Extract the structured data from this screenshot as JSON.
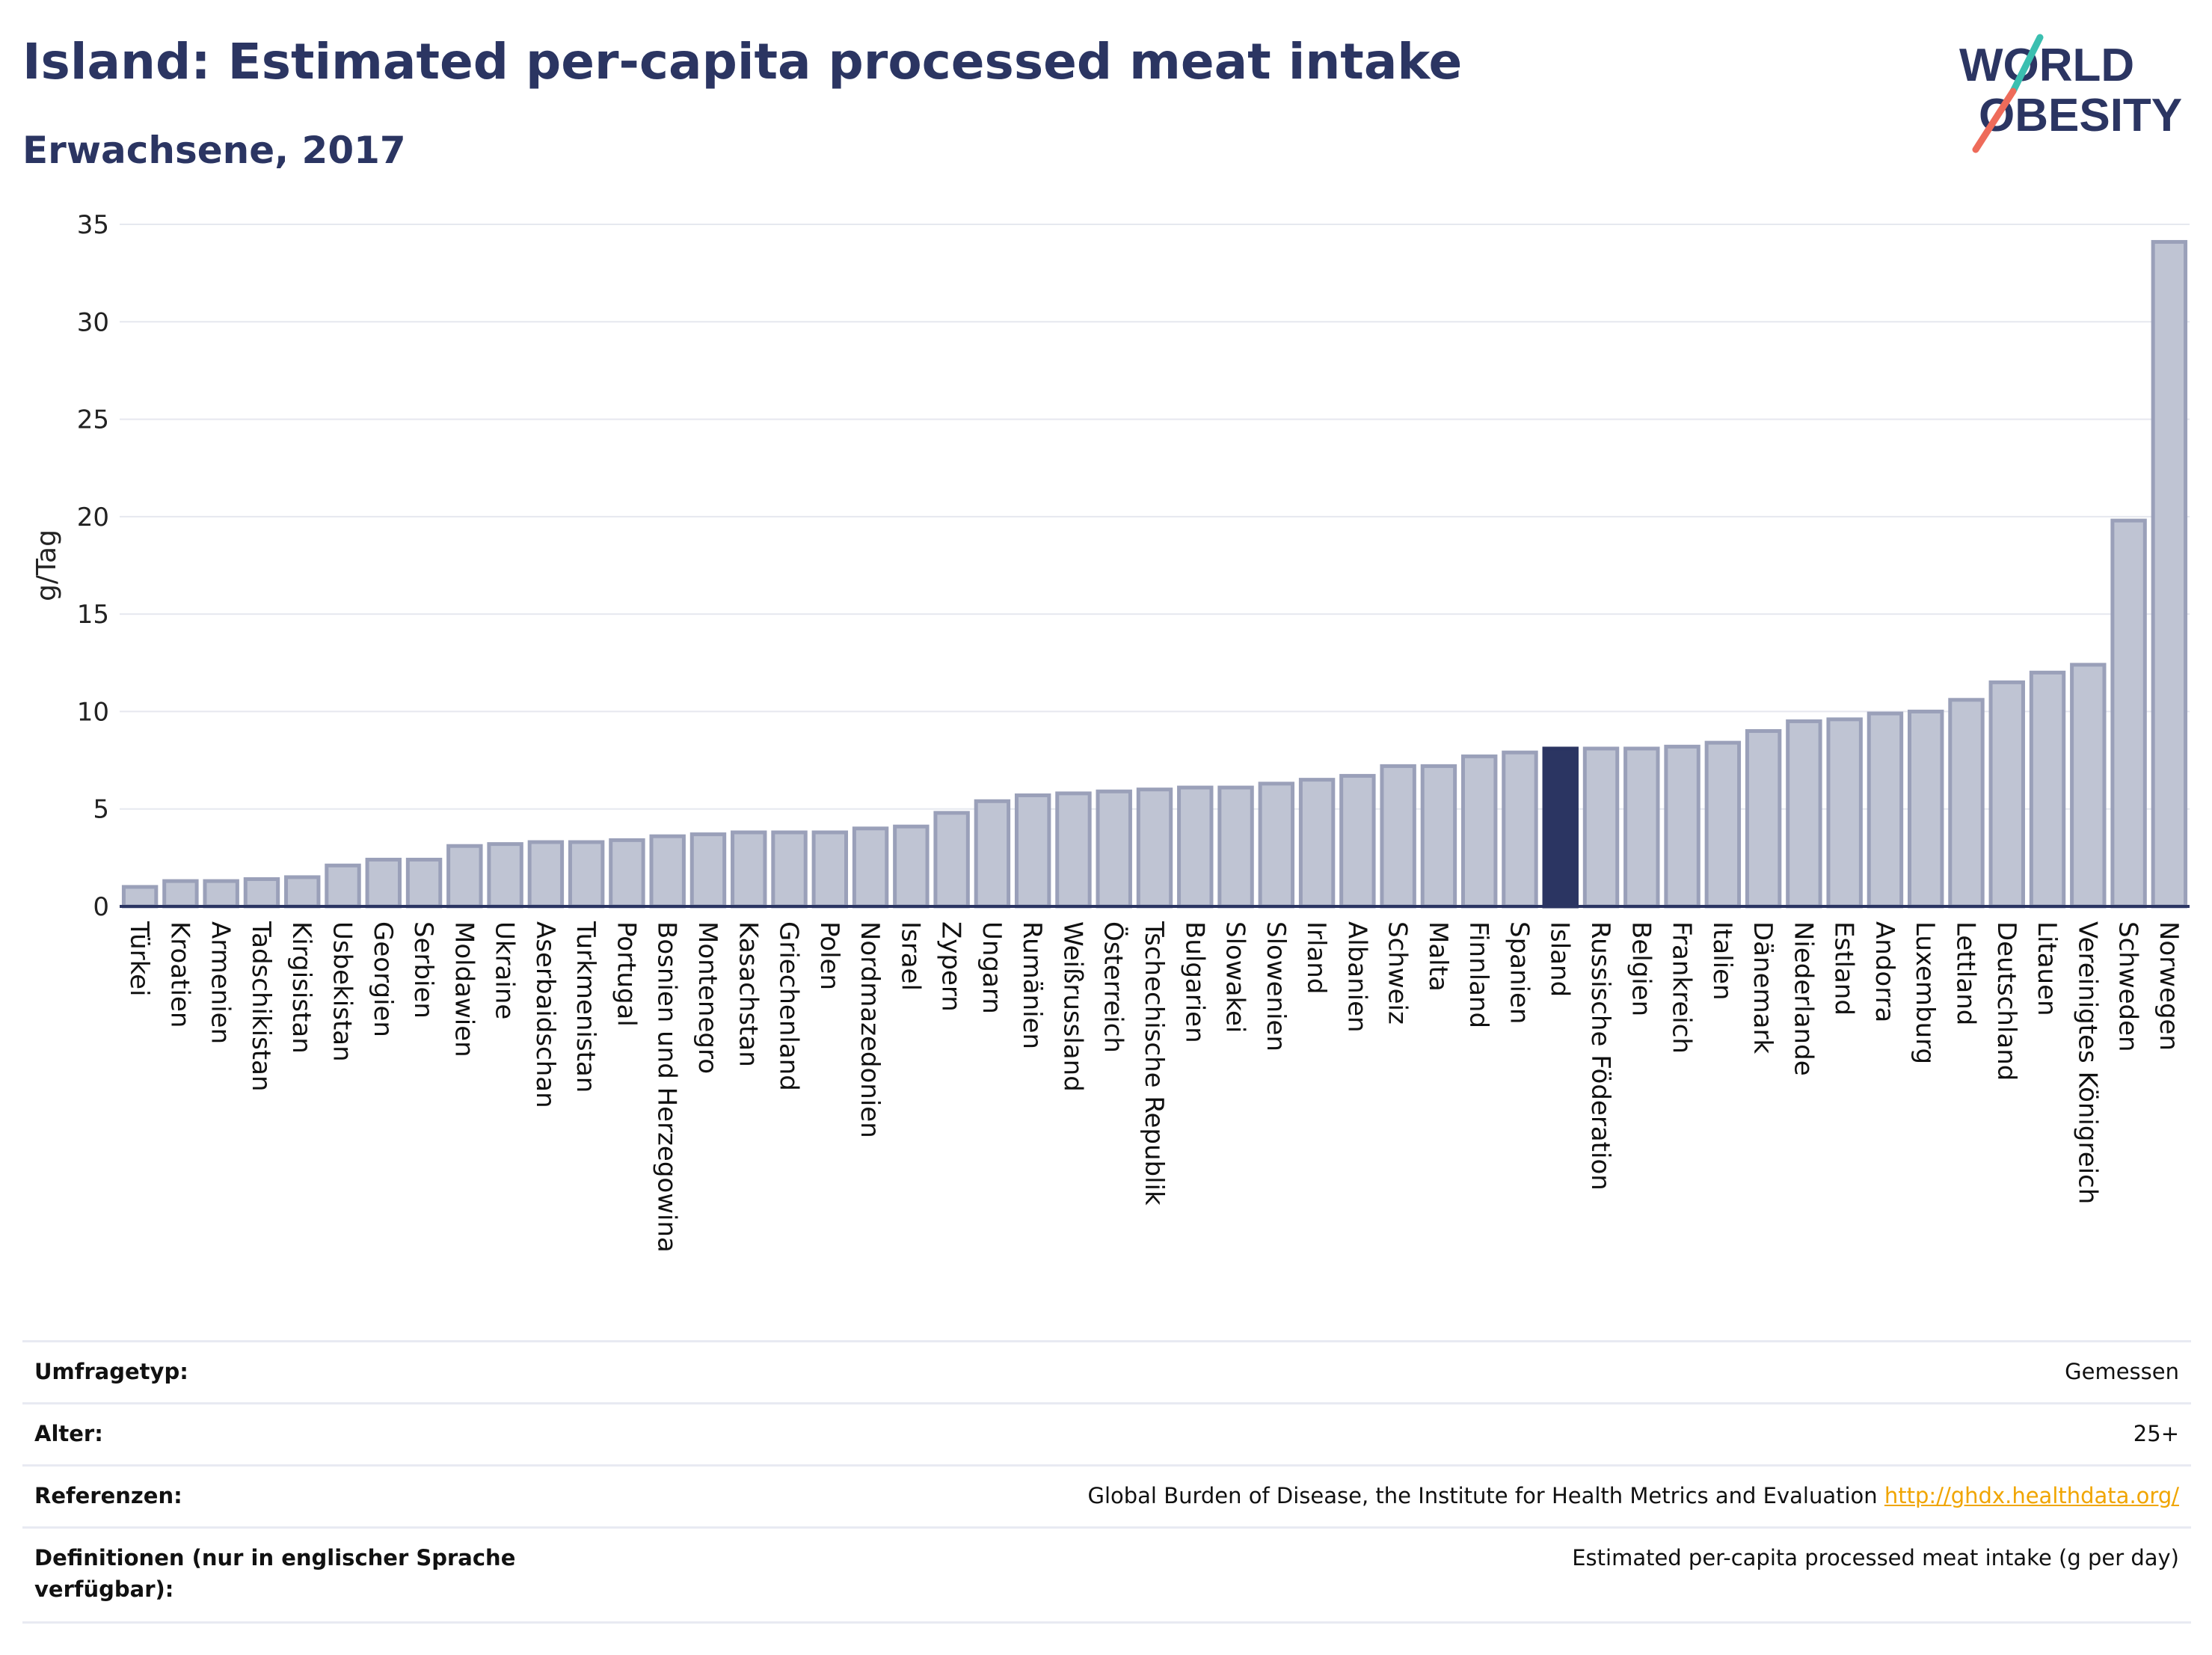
{
  "header": {
    "title": "Island: Estimated per-capita processed meat intake",
    "subtitle": "Erwachsene, 2017"
  },
  "logo": {
    "line1": "WORLD",
    "line2": "OBESITY"
  },
  "colors": {
    "bar_fill": "#bfc4d3",
    "bar_stroke": "#9aa0b9",
    "highlight": "#2b3562",
    "grid": "#e6e8ef",
    "text": "#2b3562",
    "logo_teal": "#3bbfb0",
    "logo_red": "#ee6b5a"
  },
  "chart_data": {
    "type": "bar",
    "ylabel": "g/Tag",
    "ylim": [
      0,
      35
    ],
    "yticks": [
      0,
      5,
      10,
      15,
      20,
      25,
      30,
      35
    ],
    "grid": true,
    "highlight": "Island",
    "categories": [
      "Türkei",
      "Kroatien",
      "Armenien",
      "Tadschikistan",
      "Kirgisistan",
      "Usbekistan",
      "Georgien",
      "Serbien",
      "Moldawien",
      "Ukraine",
      "Aserbaidschan",
      "Turkmenistan",
      "Portugal",
      "Bosnien und Herzegowina",
      "Montenegro",
      "Kasachstan",
      "Griechenland",
      "Polen",
      "Nordmazedonien",
      "Israel",
      "Zypern",
      "Ungarn",
      "Rumänien",
      "Weißrussland",
      "Österreich",
      "Tschechische Republik",
      "Bulgarien",
      "Slowakei",
      "Slowenien",
      "Irland",
      "Albanien",
      "Schweiz",
      "Malta",
      "Finnland",
      "Spanien",
      "Island",
      "Russische Föderation",
      "Belgien",
      "Frankreich",
      "Italien",
      "Dänemark",
      "Niederlande",
      "Estland",
      "Andorra",
      "Luxemburg",
      "Lettland",
      "Deutschland",
      "Litauen",
      "Vereinigtes Königreich",
      "Schweden",
      "Norwegen"
    ],
    "values": [
      1.0,
      1.3,
      1.3,
      1.4,
      1.5,
      2.1,
      2.4,
      2.4,
      3.1,
      3.2,
      3.3,
      3.3,
      3.4,
      3.6,
      3.7,
      3.8,
      3.8,
      3.8,
      4.0,
      4.1,
      4.8,
      5.4,
      5.7,
      5.8,
      5.9,
      6.0,
      6.1,
      6.1,
      6.3,
      6.5,
      6.7,
      7.2,
      7.2,
      7.7,
      7.9,
      8.1,
      8.1,
      8.1,
      8.2,
      8.4,
      9.0,
      9.5,
      9.6,
      9.9,
      10.0,
      10.6,
      11.5,
      12.0,
      12.4,
      19.8,
      34.1
    ]
  },
  "info": {
    "survey_label": "Umfragetyp:",
    "survey_value": "Gemessen",
    "age_label": "Alter:",
    "age_value": "25+",
    "ref_label": "Referenzen:",
    "ref_value": "Global Burden of Disease, the Institute for Health Metrics and Evaluation",
    "ref_link": "http://ghdx.healthdata.org/",
    "def_label": "Definitionen (nur in englischer Sprache verfügbar):",
    "def_value": "Estimated per-capita processed meat intake (g per day)"
  }
}
